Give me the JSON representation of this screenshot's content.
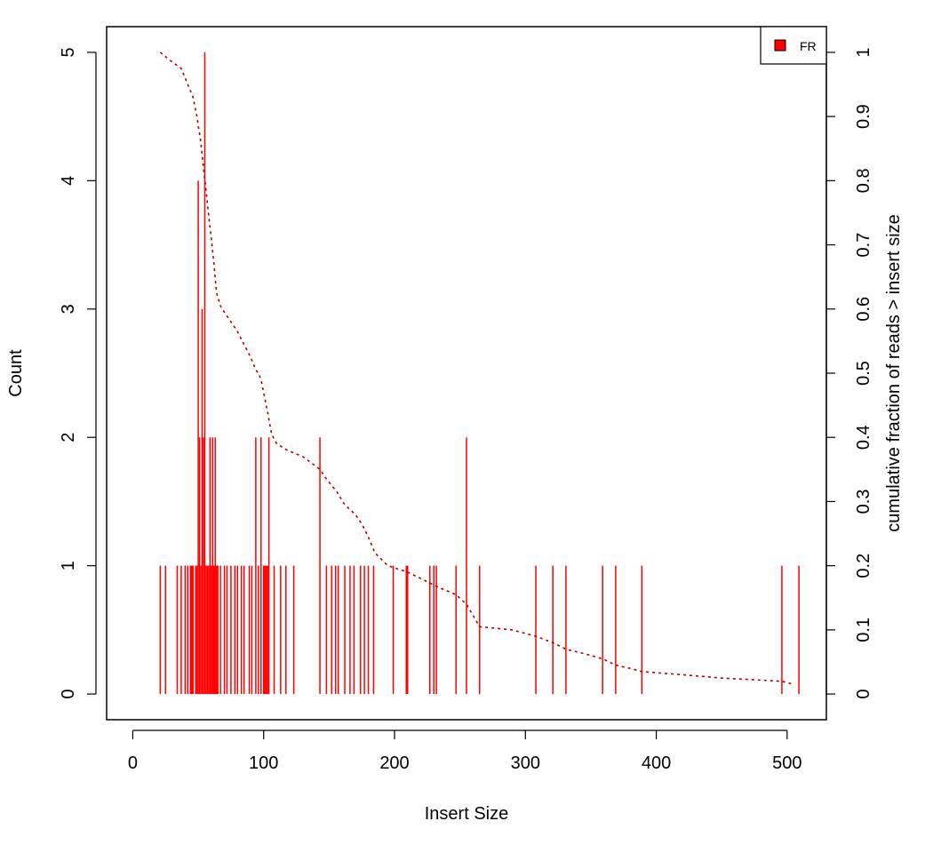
{
  "chart_data": {
    "type": "bar",
    "xlabel": "Insert Size",
    "ylabel": "Count",
    "ylabel_right": "cumulative fraction of reads > insert size",
    "xlim": [
      -20,
      530
    ],
    "ylim": [
      -0.2,
      5.2
    ],
    "ylim_right": [
      -0.04,
      1.04
    ],
    "x_ticks": [
      0,
      100,
      200,
      300,
      400,
      500
    ],
    "y_ticks": [
      0,
      1,
      2,
      3,
      4,
      5
    ],
    "y_ticks_right": [
      0,
      0.1,
      0.2,
      0.3,
      0.4,
      0.5,
      0.6,
      0.7,
      0.8,
      0.9,
      1
    ],
    "y_tick_labels_right": [
      "0",
      "0.1",
      "0.2",
      "0.3",
      "0.4",
      "0.5",
      "0.6",
      "0.7",
      "0.8",
      "0.9",
      "1"
    ],
    "grid": false,
    "legend": {
      "position": "top-right",
      "entries": [
        {
          "label": "FR",
          "color": "#ff0000"
        }
      ]
    },
    "series": [
      {
        "name": "FR",
        "kind": "bars",
        "color": "#ff0000",
        "x": [
          21,
          25,
          34,
          37,
          40,
          42,
          44,
          45,
          46,
          48,
          49,
          50,
          51,
          52,
          53,
          54,
          55,
          56,
          57,
          58,
          59,
          60,
          61,
          62,
          63,
          64,
          65,
          67,
          70,
          72,
          75,
          78,
          80,
          83,
          85,
          89,
          91,
          94,
          96,
          98,
          100,
          101,
          102,
          103,
          104,
          108,
          113,
          117,
          123,
          143,
          148,
          152,
          155,
          157,
          162,
          166,
          169,
          174,
          177,
          180,
          184,
          199,
          209,
          210,
          227,
          230,
          232,
          247,
          255,
          265,
          308,
          321,
          331,
          359,
          369,
          389,
          496,
          509
        ],
        "values": [
          1,
          1,
          1,
          1,
          1,
          1,
          1,
          1,
          1,
          1,
          1,
          4,
          2,
          1,
          3,
          2,
          5,
          1,
          1,
          1,
          2,
          1,
          2,
          1,
          2,
          1,
          1,
          1,
          1,
          1,
          1,
          1,
          1,
          1,
          1,
          1,
          1,
          2,
          1,
          2,
          1,
          1,
          1,
          1,
          2,
          1,
          1,
          1,
          1,
          2,
          1,
          1,
          1,
          1,
          1,
          1,
          1,
          1,
          1,
          1,
          1,
          1,
          1,
          1,
          1,
          1,
          1,
          1,
          2,
          1,
          1,
          1,
          1,
          1,
          1,
          1,
          1,
          1
        ]
      },
      {
        "name": "cumulative",
        "kind": "line",
        "axis": "right",
        "color": "#b00000",
        "x": [
          21,
          30,
          37,
          42,
          46,
          49,
          52,
          54,
          56,
          58,
          60,
          62,
          64,
          67,
          70,
          75,
          80,
          85,
          90,
          94,
          96,
          98,
          100,
          103,
          106,
          110,
          118,
          130,
          143,
          148,
          152,
          156,
          162,
          170,
          175,
          180,
          185,
          195,
          210,
          225,
          235,
          247,
          255,
          265,
          290,
          308,
          321,
          331,
          345,
          359,
          369,
          380,
          389,
          420,
          450,
          496,
          505
        ],
        "values": [
          1.0,
          0.985,
          0.975,
          0.95,
          0.93,
          0.9,
          0.86,
          0.82,
          0.785,
          0.745,
          0.71,
          0.67,
          0.625,
          0.605,
          0.595,
          0.58,
          0.565,
          0.545,
          0.525,
          0.505,
          0.5,
          0.49,
          0.47,
          0.44,
          0.405,
          0.39,
          0.38,
          0.37,
          0.35,
          0.335,
          0.325,
          0.315,
          0.295,
          0.28,
          0.265,
          0.245,
          0.22,
          0.2,
          0.19,
          0.175,
          0.165,
          0.155,
          0.14,
          0.105,
          0.1,
          0.09,
          0.08,
          0.07,
          0.063,
          0.055,
          0.045,
          0.04,
          0.035,
          0.03,
          0.025,
          0.02,
          0.015
        ]
      }
    ]
  }
}
